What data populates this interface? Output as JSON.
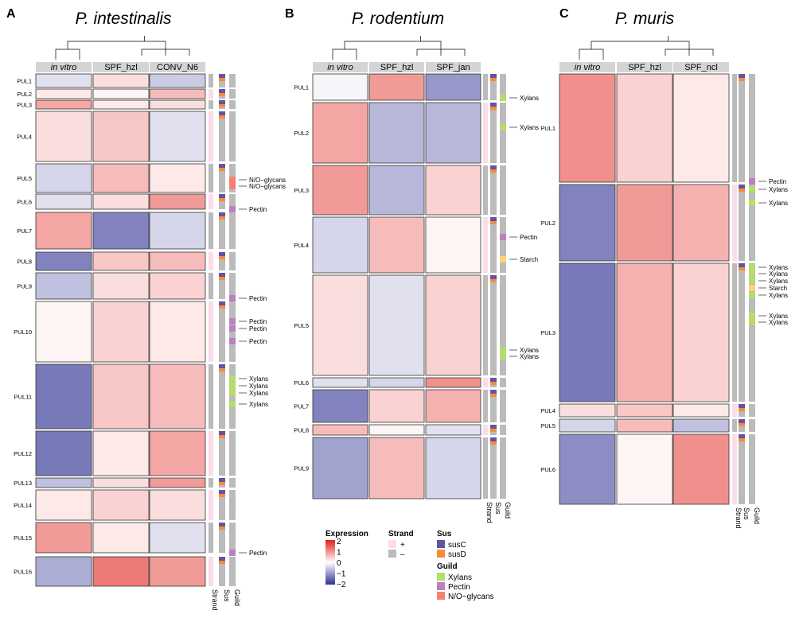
{
  "chart_data": [
    {
      "type": "heatmap",
      "panel_letter": "A",
      "title": "P. intestinalis",
      "groups": [
        "in vitro",
        "SPF_hzl",
        "CONV_N6"
      ],
      "rows": [
        "PUL1",
        "PUL2",
        "PUL3",
        "PUL4",
        "PUL5",
        "PUL6",
        "PUL7",
        "PUL8",
        "PUL9",
        "PUL10",
        "PUL11",
        "PUL12",
        "PUL13",
        "PUL14",
        "PUL15",
        "PUL16"
      ],
      "approx_mean_expression": [
        [
          -0.3,
          0.3,
          -0.5
        ],
        [
          0.2,
          0.1,
          0.6
        ],
        [
          0.8,
          0.2,
          0.3
        ],
        [
          0.3,
          0.5,
          -0.3
        ],
        [
          -0.4,
          0.6,
          0.2
        ],
        [
          -0.3,
          0.3,
          0.9
        ],
        [
          0.8,
          -1.2,
          -0.4
        ],
        [
          -1.2,
          0.5,
          0.6
        ],
        [
          -0.6,
          0.3,
          0.4
        ],
        [
          0.1,
          0.4,
          0.2
        ],
        [
          -1.3,
          0.5,
          0.6
        ],
        [
          -1.3,
          0.2,
          0.8
        ],
        [
          -0.6,
          0.3,
          0.9
        ],
        [
          0.2,
          0.4,
          0.3
        ],
        [
          0.9,
          0.2,
          -0.3
        ],
        [
          -0.8,
          1.2,
          0.9
        ]
      ],
      "guild_annotations": [
        "N/O−glycans",
        "N/O−glycans",
        "Pectin",
        "Pectin",
        "Pectin",
        "Pectin",
        "Pectin",
        "Xylans",
        "Xylans",
        "Xylans",
        "Xylans",
        "Pectin"
      ],
      "track_labels": [
        "Strand",
        "Sus",
        "Guild"
      ]
    },
    {
      "type": "heatmap",
      "panel_letter": "B",
      "title": "P. rodentium",
      "groups": [
        "in vitro",
        "SPF_hzl",
        "SPF_jan"
      ],
      "rows": [
        "PUL1",
        "PUL2",
        "PUL3",
        "PUL4",
        "PUL5",
        "PUL6",
        "PUL7",
        "PUL8",
        "PUL9"
      ],
      "approx_mean_expression": [
        [
          -0.1,
          0.9,
          -1.0
        ],
        [
          0.8,
          -0.7,
          -0.7
        ],
        [
          0.9,
          -0.7,
          0.4
        ],
        [
          -0.4,
          0.6,
          0.1
        ],
        [
          0.3,
          -0.3,
          0.4
        ],
        [
          -0.3,
          -0.4,
          1.0
        ],
        [
          -1.2,
          0.4,
          0.7
        ],
        [
          0.6,
          0.1,
          -0.3
        ],
        [
          -0.9,
          0.6,
          -0.4
        ]
      ],
      "guild_annotations": [
        "Xylans",
        "Xylans",
        "Pectin",
        "Starch",
        "Xylans",
        "Xylans"
      ],
      "track_labels": [
        "Strand",
        "Sus",
        "Guild"
      ]
    },
    {
      "type": "heatmap",
      "panel_letter": "C",
      "title": "P. muris",
      "groups": [
        "in vitro",
        "SPF_hzl",
        "SPF_ncl"
      ],
      "rows": [
        "PUL1",
        "PUL2",
        "PUL3",
        "PUL4",
        "PUL5",
        "PUL6"
      ],
      "approx_mean_expression": [
        [
          1.0,
          0.4,
          0.2
        ],
        [
          -1.2,
          0.9,
          0.7
        ],
        [
          -1.3,
          0.7,
          0.4
        ],
        [
          0.3,
          0.5,
          0.2
        ],
        [
          -0.4,
          0.6,
          -0.6
        ],
        [
          -1.1,
          0.1,
          1.0
        ]
      ],
      "guild_annotations": [
        "Pectin",
        "Xylans",
        "Xylans",
        "Xylans",
        "Xylans",
        "Xylans",
        "Starch",
        "Xylans",
        "Xylans",
        "Xylans"
      ],
      "track_labels": [
        "Strand",
        "Sus",
        "Guild"
      ]
    }
  ],
  "legend": {
    "expression": {
      "title": "Expression",
      "ticks": [
        "2",
        "1",
        "0",
        "−1",
        "−2"
      ],
      "range": [
        -2,
        2
      ],
      "low_color": "#2e3192",
      "mid_color": "#ffffff",
      "high_color": "#e0201b"
    },
    "strand": {
      "title": "Strand",
      "items": [
        {
          "label": "+",
          "color": "#fbdcea"
        },
        {
          "label": "–",
          "color": "#bbbbbb"
        }
      ]
    },
    "sus": {
      "title": "Sus",
      "items": [
        {
          "label": "susC",
          "color": "#6452a3"
        },
        {
          "label": "susD",
          "color": "#f98b32"
        }
      ]
    },
    "guild": {
      "title": "Guild",
      "items": [
        {
          "label": "Xylans",
          "color": "#b5dd6a"
        },
        {
          "label": "Pectin",
          "color": "#bd7fbd"
        },
        {
          "label": "N/O−glycans",
          "color": "#f88070"
        }
      ]
    },
    "starch_color": "#ffd27a"
  }
}
